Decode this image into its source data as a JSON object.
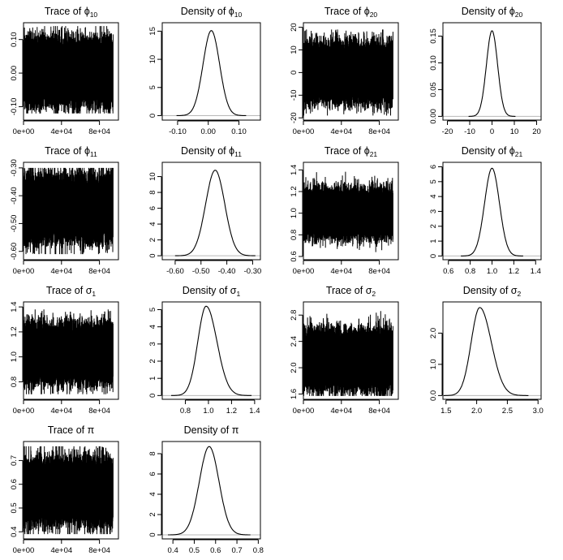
{
  "chart_data": [
    {
      "type": "line",
      "kind": "trace",
      "title_main": "Trace of ",
      "title_sym": "ϕ",
      "title_sub": "10",
      "x_ticks": [
        "0e+00",
        "4e+04",
        "8e+04"
      ],
      "x_tick_values": [
        0,
        40000,
        80000
      ],
      "xlim": [
        0,
        100000
      ],
      "y_ticks": [
        "-0.10",
        "0.00",
        "0.10"
      ],
      "y_tick_values": [
        -0.1,
        0,
        0.1
      ],
      "ylim": [
        -0.14,
        0.15
      ],
      "band": {
        "center": 0.0,
        "sd": 0.03,
        "q_low": -0.07,
        "q_high": 0.08,
        "min": -0.12,
        "max": 0.14
      }
    },
    {
      "type": "line",
      "kind": "density",
      "title_main": "Density of ",
      "title_sym": "ϕ",
      "title_sub": "10",
      "x_ticks": [
        "-0.10",
        "0.00",
        "0.10"
      ],
      "x_tick_values": [
        -0.1,
        0,
        0.1
      ],
      "xlim": [
        -0.15,
        0.17
      ],
      "y_ticks": [
        "0",
        "5",
        "10",
        "15"
      ],
      "y_tick_values": [
        0,
        5,
        10,
        15
      ],
      "ylim": [
        -0.8,
        16.5
      ],
      "density": {
        "mode": 0.01,
        "sd": 0.027,
        "peak": 15.1,
        "skew": 0
      }
    },
    {
      "type": "line",
      "kind": "trace",
      "title_main": "Trace of ",
      "title_sym": "ϕ",
      "title_sub": "20",
      "x_ticks": [
        "0e+00",
        "4e+04",
        "8e+04"
      ],
      "x_tick_values": [
        0,
        40000,
        80000
      ],
      "xlim": [
        0,
        100000
      ],
      "y_ticks": [
        "-20",
        "-10",
        "0",
        "10",
        "20"
      ],
      "y_tick_values": [
        -20,
        -10,
        0,
        10,
        20
      ],
      "ylim": [
        -21,
        22
      ],
      "band": {
        "center": 0,
        "sd": 4,
        "q_low": -10,
        "q_high": 10,
        "min": -19,
        "max": 19
      }
    },
    {
      "type": "line",
      "kind": "density",
      "title_main": "Density of ",
      "title_sym": "ϕ",
      "title_sub": "20",
      "x_ticks": [
        "-20",
        "-10",
        "0",
        "10",
        "20"
      ],
      "x_tick_values": [
        -20,
        -10,
        0,
        10,
        20
      ],
      "xlim": [
        -22,
        22
      ],
      "y_ticks": [
        "0.00",
        "0.05",
        "0.10",
        "0.15"
      ],
      "y_tick_values": [
        0,
        0.05,
        0.1,
        0.15
      ],
      "ylim": [
        -0.007,
        0.175
      ],
      "density": {
        "mode": 0,
        "sd": 2.5,
        "peak": 0.16,
        "skew": 0
      }
    },
    {
      "type": "line",
      "kind": "trace",
      "title_main": "Trace of ",
      "title_sym": "ϕ",
      "title_sub": "11",
      "x_ticks": [
        "0e+00",
        "4e+04",
        "8e+04"
      ],
      "x_tick_values": [
        0,
        40000,
        80000
      ],
      "xlim": [
        0,
        100000
      ],
      "y_ticks": [
        "-0.60",
        "-0.50",
        "-0.40",
        "-0.30"
      ],
      "y_tick_values": [
        -0.6,
        -0.5,
        -0.4,
        -0.3
      ],
      "ylim": [
        -0.63,
        -0.28
      ],
      "band": {
        "center": -0.445,
        "sd": 0.04,
        "q_low": -0.53,
        "q_high": -0.36,
        "min": -0.61,
        "max": -0.3
      }
    },
    {
      "type": "line",
      "kind": "density",
      "title_main": "Density of ",
      "title_sym": "ϕ",
      "title_sub": "11",
      "x_ticks": [
        "-0.60",
        "-0.50",
        "-0.40",
        "-0.30"
      ],
      "x_tick_values": [
        -0.6,
        -0.5,
        -0.4,
        -0.3
      ],
      "xlim": [
        -0.65,
        -0.27
      ],
      "y_ticks": [
        "0",
        "2",
        "4",
        "6",
        "8",
        "10"
      ],
      "y_tick_values": [
        0,
        2,
        4,
        6,
        8,
        10
      ],
      "ylim": [
        -0.5,
        11.8
      ],
      "density": {
        "mode": -0.445,
        "sd": 0.037,
        "peak": 10.8,
        "skew": 0
      }
    },
    {
      "type": "line",
      "kind": "trace",
      "title_main": "Trace of ",
      "title_sym": "ϕ",
      "title_sub": "21",
      "x_ticks": [
        "0e+00",
        "4e+04",
        "8e+04"
      ],
      "x_tick_values": [
        0,
        40000,
        80000
      ],
      "xlim": [
        0,
        100000
      ],
      "y_ticks": [
        "0.6",
        "0.8",
        "1.0",
        "1.2",
        "1.4"
      ],
      "y_tick_values": [
        0.6,
        0.8,
        1.0,
        1.2,
        1.4
      ],
      "ylim": [
        0.57,
        1.47
      ],
      "band": {
        "center": 1.0,
        "sd": 0.07,
        "q_low": 0.83,
        "q_high": 1.17,
        "min": 0.62,
        "max": 1.42
      }
    },
    {
      "type": "line",
      "kind": "density",
      "title_main": "Density of ",
      "title_sym": "ϕ",
      "title_sub": "21",
      "x_ticks": [
        "0.6",
        "0.8",
        "1.0",
        "1.2",
        "1.4"
      ],
      "x_tick_values": [
        0.6,
        0.8,
        1.0,
        1.2,
        1.4
      ],
      "xlim": [
        0.55,
        1.45
      ],
      "y_ticks": [
        "0",
        "1",
        "2",
        "3",
        "4",
        "5",
        "6"
      ],
      "y_tick_values": [
        0,
        1,
        2,
        3,
        4,
        5,
        6
      ],
      "ylim": [
        -0.25,
        6.3
      ],
      "density": {
        "mode": 1.0,
        "sd": 0.068,
        "peak": 5.9,
        "skew": 0
      }
    },
    {
      "type": "line",
      "kind": "trace",
      "title_main": "Trace of ",
      "title_sym": "σ",
      "title_sub": "1",
      "x_ticks": [
        "0e+00",
        "4e+04",
        "8e+04"
      ],
      "x_tick_values": [
        0,
        40000,
        80000
      ],
      "xlim": [
        0,
        100000
      ],
      "y_ticks": [
        "0.8",
        "1.0",
        "1.2",
        "1.4"
      ],
      "y_tick_values": [
        0.8,
        1.0,
        1.2,
        1.4
      ],
      "ylim": [
        0.66,
        1.44
      ],
      "band": {
        "center": 1.0,
        "sd": 0.075,
        "q_low": 0.85,
        "q_high": 1.2,
        "min": 0.7,
        "max": 1.38
      }
    },
    {
      "type": "line",
      "kind": "density",
      "title_main": "Density of ",
      "title_sym": "σ",
      "title_sub": "1",
      "x_ticks": [
        "0.8",
        "1.0",
        "1.2",
        "1.4"
      ],
      "x_tick_values": [
        0.8,
        1.0,
        1.2,
        1.4
      ],
      "xlim": [
        0.6,
        1.45
      ],
      "y_ticks": [
        "0",
        "1",
        "2",
        "3",
        "4",
        "5"
      ],
      "y_tick_values": [
        0,
        1,
        2,
        3,
        4,
        5
      ],
      "ylim": [
        -0.22,
        5.45
      ],
      "density": {
        "mode": 0.98,
        "sd": 0.072,
        "peak": 5.2,
        "skew": 0.3
      }
    },
    {
      "type": "line",
      "kind": "trace",
      "title_main": "Trace of ",
      "title_sym": "σ",
      "title_sub": "2",
      "x_ticks": [
        "0e+00",
        "4e+04",
        "8e+04"
      ],
      "x_tick_values": [
        0,
        40000,
        80000
      ],
      "xlim": [
        0,
        100000
      ],
      "y_ticks": [
        "1.6",
        "2.0",
        "2.4",
        "2.8"
      ],
      "y_tick_values": [
        1.6,
        2.0,
        2.4,
        2.8
      ],
      "ylim": [
        1.52,
        3.0
      ],
      "band": {
        "center": 2.06,
        "sd": 0.14,
        "q_low": 1.78,
        "q_high": 2.46,
        "min": 1.57,
        "max": 2.95
      }
    },
    {
      "type": "line",
      "kind": "density",
      "title_main": "Density of ",
      "title_sym": "σ",
      "title_sub": "2",
      "x_ticks": [
        "1.5",
        "2.0",
        "2.5",
        "3.0"
      ],
      "x_tick_values": [
        1.5,
        2.0,
        2.5,
        3.0
      ],
      "xlim": [
        1.45,
        3.05
      ],
      "y_ticks": [
        "0.0",
        "1.0",
        "2.0"
      ],
      "y_tick_values": [
        0,
        1,
        2
      ],
      "ylim": [
        -0.12,
        3.0
      ],
      "density": {
        "mode": 2.05,
        "sd": 0.14,
        "peak": 2.82,
        "skew": 0.35
      }
    },
    {
      "type": "line",
      "kind": "trace",
      "title_main": "Trace of ",
      "title_sym": "π",
      "title_sub": "",
      "x_ticks": [
        "0e+00",
        "4e+04",
        "8e+04"
      ],
      "x_tick_values": [
        0,
        40000,
        80000
      ],
      "xlim": [
        0,
        100000
      ],
      "y_ticks": [
        "0.4",
        "0.5",
        "0.6",
        "0.7"
      ],
      "y_tick_values": [
        0.4,
        0.5,
        0.6,
        0.7
      ],
      "ylim": [
        0.37,
        0.78
      ],
      "band": {
        "center": 0.57,
        "sd": 0.045,
        "q_low": 0.47,
        "q_high": 0.67,
        "min": 0.39,
        "max": 0.76
      }
    },
    {
      "type": "line",
      "kind": "density",
      "title_main": "Density of ",
      "title_sym": "π",
      "title_sub": "",
      "x_ticks": [
        "0.4",
        "0.5",
        "0.6",
        "0.7",
        "0.8"
      ],
      "x_tick_values": [
        0.4,
        0.5,
        0.6,
        0.7,
        0.8
      ],
      "xlim": [
        0.35,
        0.81
      ],
      "y_ticks": [
        "0",
        "2",
        "4",
        "6",
        "8"
      ],
      "y_tick_values": [
        0,
        2,
        4,
        6,
        8
      ],
      "ylim": [
        -0.4,
        9.2
      ],
      "density": {
        "mode": 0.57,
        "sd": 0.046,
        "peak": 8.7,
        "skew": 0
      }
    }
  ]
}
